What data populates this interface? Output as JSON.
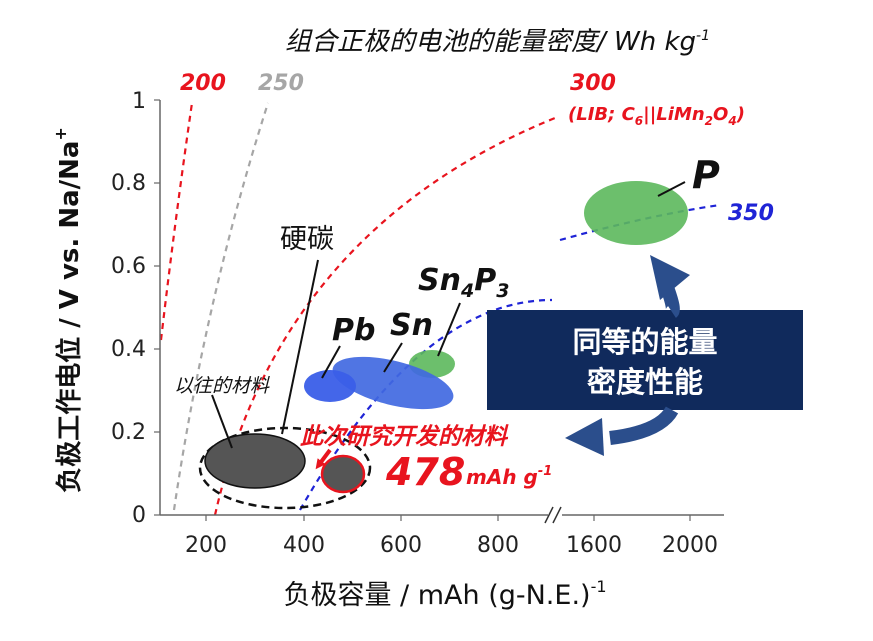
{
  "chart_data": {
    "type": "scatter",
    "title": "组合正极的电池的能量密度/ Wh kg",
    "title_sup": "-1",
    "xlabel": "负极容量  / mAh (g-N.E.)",
    "xlabel_sup": "-1",
    "ylabel": "负极工作电位  / V vs. Na/Na",
    "ylabel_sup": "+",
    "x_ticks": [
      "200",
      "400",
      "600",
      "800",
      "1600",
      "2000"
    ],
    "y_ticks": [
      "0",
      "0.2",
      "0.4",
      "0.6",
      "0.8",
      "1"
    ],
    "ylim": [
      0,
      1
    ],
    "x_axis_break": true,
    "energy_density_curves": [
      {
        "label": "200",
        "color": "#e8141e"
      },
      {
        "label": "250",
        "color": "#a6a6a6"
      },
      {
        "label": "300",
        "note": "(LIB; C6||LiMn2O4)",
        "color": "#e8141e"
      },
      {
        "label": "350",
        "color": "#1f24d6"
      }
    ],
    "materials": [
      {
        "name": "P",
        "x": 1800,
        "y": 0.72,
        "color": "#5cb85c"
      },
      {
        "name": "Sn4P3",
        "x": 680,
        "y": 0.38,
        "color": "#5cb85c"
      },
      {
        "name": "Sn",
        "x": 560,
        "y": 0.3,
        "color": "#4169e1"
      },
      {
        "name": "Pb",
        "x": 440,
        "y": 0.3,
        "color": "#4169e1"
      },
      {
        "name": "硬碳",
        "x": 295,
        "y": 0.12,
        "color": "#555555"
      },
      {
        "name": "478 mAh g-1",
        "x": 478,
        "y": 0.08,
        "color": "#555555"
      }
    ],
    "annotations": {
      "hard_carbon": "硬碳",
      "previous_materials": "以往的材料",
      "this_work": "此次研究开发的材料",
      "capacity_value": "478",
      "capacity_unit": "mAh g",
      "capacity_unit_sup": "-1",
      "callout_line1": "同等的能量",
      "callout_line2": "密度性能"
    },
    "colors": {
      "red": "#e8141e",
      "gray": "#a6a6a6",
      "blue": "#1f24d6",
      "navy_box": "#102a5c",
      "arrow": "#2b4e8c"
    }
  }
}
